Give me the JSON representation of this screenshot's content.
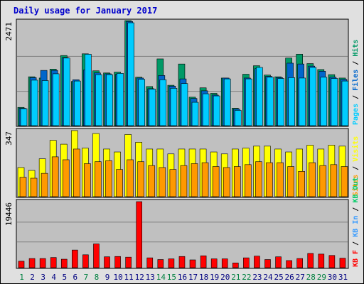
{
  "title": "Daily usage for January 2017",
  "colors": {
    "background": "#e0e0e0",
    "panel": "#c0c0c0",
    "pages": "#00ccff",
    "files": "#0066cc",
    "hits": "#009966",
    "sites": "#ff9900",
    "visits": "#ffff00",
    "kbytes": "#ff0000",
    "kb_in": "#3399ff",
    "kb_out": "#00cc66",
    "weekend_day": "#008040",
    "weekday": "#000080"
  },
  "chart_data": {
    "type": "bar",
    "categories": [
      "1",
      "2",
      "3",
      "4",
      "5",
      "6",
      "7",
      "8",
      "9",
      "10",
      "11",
      "12",
      "13",
      "14",
      "15",
      "16",
      "17",
      "18",
      "19",
      "20",
      "21",
      "22",
      "23",
      "24",
      "25",
      "26",
      "27",
      "28",
      "29",
      "30",
      "31"
    ],
    "weekend_days": [
      "1",
      "7",
      "8",
      "14",
      "15",
      "21",
      "22",
      "28",
      "29"
    ],
    "panels": [
      {
        "name": "hits-files-pages",
        "max_label": "2471",
        "ylim": [
          0,
          2471
        ],
        "series": [
          {
            "name": "Hits",
            "values": [
              430,
              1150,
              1120,
              1330,
              1650,
              1040,
              1690,
              1290,
              1240,
              1260,
              2471,
              1140,
              920,
              1570,
              950,
              1450,
              670,
              890,
              760,
              1120,
              410,
              1210,
              1410,
              1190,
              1150,
              1590,
              1680,
              1460,
              1320,
              1200,
              1120
            ]
          },
          {
            "name": "Files",
            "values": [
              410,
              1130,
              1300,
              1300,
              1600,
              1080,
              1310,
              1240,
              1220,
              1210,
              2450,
              1120,
              870,
              1180,
              930,
              1100,
              640,
              820,
              720,
              1120,
              390,
              1120,
              1340,
              1160,
              1130,
              1470,
              1450,
              1400,
              1280,
              1140,
              1090
            ]
          },
          {
            "name": "Pages",
            "values": [
              400,
              1070,
              1060,
              1220,
              1590,
              1050,
              1680,
              1200,
              1200,
              1230,
              2420,
              1090,
              860,
              1080,
              880,
              990,
              550,
              750,
              700,
              1100,
              360,
              1100,
              1370,
              1140,
              1110,
              1130,
              1120,
              1370,
              1140,
              1110,
              1050
            ]
          }
        ],
        "legend": [
          {
            "label": "Pages",
            "color": "#00ccff"
          },
          {
            "label": "Files",
            "color": "#0066cc"
          },
          {
            "label": "Hits",
            "color": "#009966"
          }
        ]
      },
      {
        "name": "visits-sites",
        "max_label": "347",
        "ylim": [
          0,
          347
        ],
        "series": [
          {
            "name": "Visits",
            "values": [
              150,
              135,
              195,
              290,
              270,
              340,
              250,
              325,
              245,
              230,
              320,
              280,
              245,
              245,
              220,
              245,
              245,
              245,
              230,
              220,
              245,
              250,
              260,
              260,
              245,
              230,
              245,
              265,
              245,
              265,
              260
            ]
          },
          {
            "name": "Sites",
            "values": [
              100,
              95,
              120,
              205,
              190,
              245,
              170,
              180,
              185,
              140,
              190,
              180,
              160,
              150,
              140,
              160,
              170,
              175,
              155,
              150,
              155,
              165,
              180,
              175,
              175,
              155,
              130,
              175,
              160,
              165,
              155
            ]
          }
        ],
        "legend": [
          {
            "label": "Sites",
            "color": "#ff9900"
          },
          {
            "label": "Visits",
            "color": "#ffff00"
          }
        ]
      },
      {
        "name": "kbytes",
        "max_label": "19446",
        "ylim": [
          0,
          19446
        ],
        "series": [
          {
            "name": "KBytes",
            "values": [
              1900,
              2700,
              2700,
              3000,
              2500,
              5200,
              3800,
              7000,
              3200,
              3300,
              3100,
              19446,
              2900,
              2400,
              2600,
              3300,
              2300,
              3500,
              2600,
              2600,
              1400,
              2900,
              3400,
              2400,
              3200,
              2100,
              2700,
              4200,
              4000,
              3600,
              2800
            ]
          }
        ],
        "legend": [
          {
            "label": "KB F",
            "color": "#ff0000"
          },
          {
            "label": "KB In",
            "color": "#3399ff"
          },
          {
            "label": "KB Out",
            "color": "#00cc66"
          }
        ]
      }
    ]
  }
}
